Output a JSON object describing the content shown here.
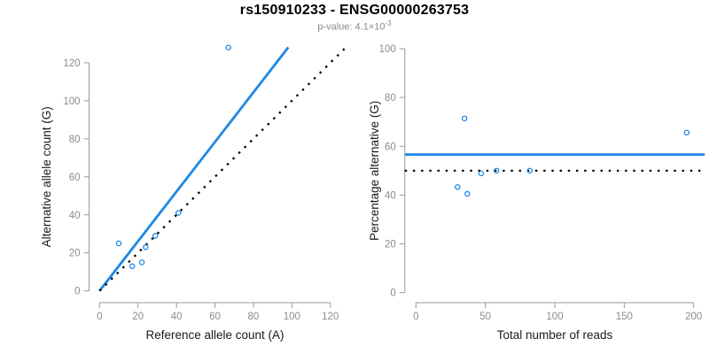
{
  "header": {
    "title": "rs150910233 - ENSG00000263753",
    "subtitle_prefix": "p-value: 4.1×10",
    "subtitle_exponent": "-3"
  },
  "colors": {
    "accent_blue": "#1E87E5",
    "axis_gray": "#999999",
    "tick_label_gray": "#8C8C8C",
    "axis_title_color": "#1A1A1A",
    "line_black": "#000000"
  },
  "chart_data": [
    {
      "type": "scatter",
      "panel": "allele-counts",
      "xlabel": "Reference allele count (A)",
      "ylabel": "Alternative allele count (G)",
      "xlim": [
        0,
        120
      ],
      "ylim": [
        0,
        120
      ],
      "xticks": [
        0,
        20,
        40,
        60,
        80,
        100,
        120
      ],
      "yticks": [
        0,
        20,
        40,
        60,
        80,
        100,
        120
      ],
      "grid": false,
      "legend": false,
      "points": [
        [
          10,
          25
        ],
        [
          17,
          13
        ],
        [
          22,
          15
        ],
        [
          24,
          23
        ],
        [
          29,
          29
        ],
        [
          41,
          41
        ],
        [
          67,
          128
        ]
      ],
      "lines": [
        {
          "name": "fitted-ratio-line",
          "style": "solid",
          "color_key": "accent_blue",
          "slope": 1.305,
          "intercept": 0,
          "x_start": 0
        },
        {
          "name": "identity-line",
          "style": "dotted",
          "color_key": "line_black",
          "slope": 1,
          "intercept": 0,
          "x_start": 0
        }
      ]
    },
    {
      "type": "scatter",
      "panel": "percentage-vs-coverage",
      "xlabel": "Total number of reads",
      "ylabel": "Percentage alternative (G)",
      "xlim": [
        0,
        200
      ],
      "ylim": [
        0,
        100
      ],
      "xticks": [
        0,
        50,
        100,
        150,
        200
      ],
      "yticks": [
        0,
        20,
        40,
        60,
        80,
        100
      ],
      "grid": false,
      "legend": false,
      "points": [
        [
          35,
          71.4
        ],
        [
          30,
          43.3
        ],
        [
          37,
          40.5
        ],
        [
          47,
          48.9
        ],
        [
          58,
          50
        ],
        [
          82,
          50
        ],
        [
          195,
          65.6
        ]
      ],
      "lines": [
        {
          "name": "mean-percentage-line",
          "style": "solid",
          "color_key": "accent_blue",
          "slope": 0,
          "intercept": 56.6
        },
        {
          "name": "fifty-percent-line",
          "style": "dotted",
          "color_key": "line_black",
          "slope": 0,
          "intercept": 50
        }
      ]
    }
  ]
}
